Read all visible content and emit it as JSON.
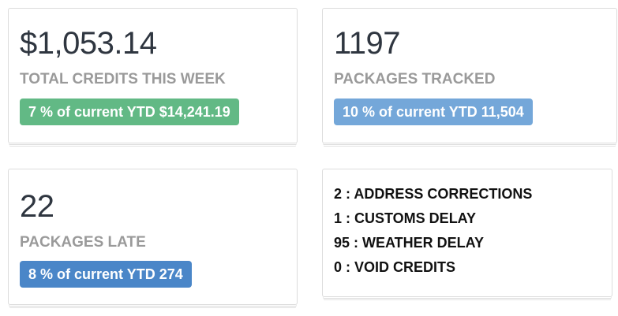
{
  "cards": [
    {
      "value": "$1,053.14",
      "label": "TOTAL CREDITS THIS WEEK",
      "badge": "7 % of current YTD $14,241.19"
    },
    {
      "value": "1197",
      "label": "PACKAGES TRACKED",
      "badge": "10 % of current YTD 11,504"
    },
    {
      "value": "22",
      "label": "PACKAGES LATE",
      "badge": "8 % of current YTD 274"
    }
  ],
  "delays": [
    "2 : ADDRESS CORRECTIONS",
    "1 : CUSTOMS DELAY",
    "95 : WEATHER DELAY",
    "0 : VOID CREDITS"
  ]
}
